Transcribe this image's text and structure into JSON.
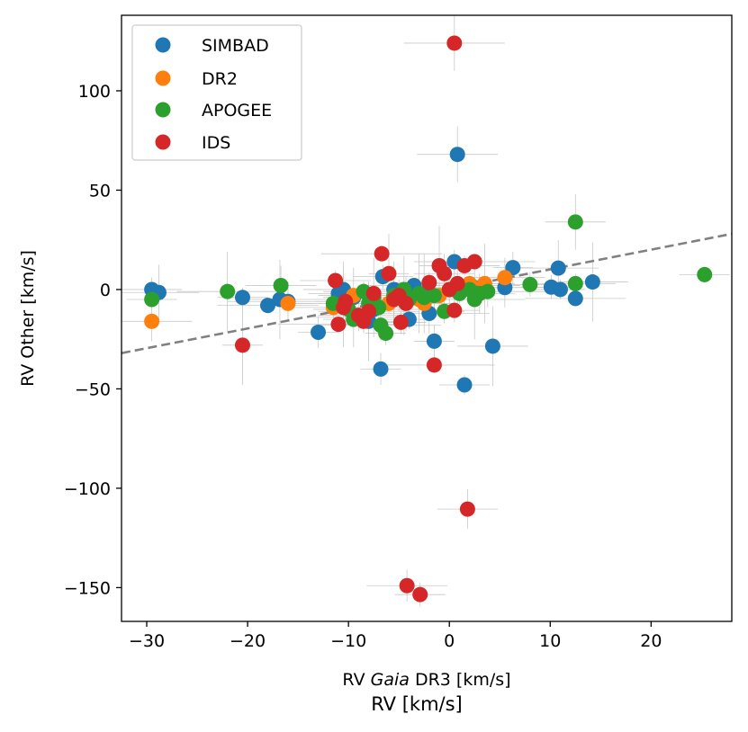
{
  "chart_data": {
    "type": "scatter",
    "title": "",
    "xlabel_parts": [
      "RV ",
      "Gaia",
      " DR3 [km/s]"
    ],
    "ylabel": "RV Other [km/s]",
    "xlim": [
      -32.5,
      28
    ],
    "ylim": [
      -167,
      138
    ],
    "xticks": [
      -30,
      -20,
      -10,
      0,
      10,
      20
    ],
    "xtick_labels": [
      "−30",
      "−20",
      "−10",
      "0",
      "10",
      "20"
    ],
    "yticks": [
      -150,
      -100,
      -50,
      0,
      50,
      100
    ],
    "ytick_labels": [
      "−150",
      "−100",
      "−50",
      "0",
      "50",
      "100"
    ],
    "reference_line": {
      "style": "dashed",
      "color": "#808080",
      "points": [
        [
          -32.5,
          -32
        ],
        [
          28,
          28
        ]
      ]
    },
    "legend_position": "top-left",
    "cut_off_text": "RV [km/s]",
    "series": [
      {
        "name": "SIMBAD",
        "color": "#1f77b4",
        "points": [
          [
            -29.5,
            0
          ],
          [
            -28.8,
            -1.5
          ],
          [
            -20.5,
            -4
          ],
          [
            -18,
            -8
          ],
          [
            -16.8,
            -5
          ],
          [
            -16,
            -6
          ],
          [
            -13,
            -21.5
          ],
          [
            -11,
            -2
          ],
          [
            -10.5,
            0
          ],
          [
            -9.5,
            -4
          ],
          [
            -8.5,
            -14
          ],
          [
            -8,
            -16
          ],
          [
            -7.5,
            -10
          ],
          [
            -6.8,
            -40
          ],
          [
            -6.6,
            6.5
          ],
          [
            -5.5,
            0
          ],
          [
            -4,
            -15
          ],
          [
            -3.5,
            2
          ],
          [
            -2.5,
            -2
          ],
          [
            -2,
            -12
          ],
          [
            -1.5,
            -26
          ],
          [
            0.5,
            14
          ],
          [
            0.8,
            68
          ],
          [
            1.5,
            -48
          ],
          [
            2.5,
            1
          ],
          [
            4.3,
            -28.5
          ],
          [
            5.5,
            1
          ],
          [
            6.3,
            11
          ],
          [
            10.1,
            1.2
          ],
          [
            10.8,
            10.8
          ],
          [
            11,
            0
          ],
          [
            12.5,
            -4.5
          ],
          [
            14.2,
            3.8
          ]
        ]
      },
      {
        "name": "DR2",
        "color": "#ff7f0e",
        "points": [
          [
            -29.5,
            -16
          ],
          [
            -16,
            -7
          ],
          [
            -11.5,
            -9
          ],
          [
            -9.5,
            -3
          ],
          [
            -7.5,
            -5
          ],
          [
            -6,
            -7
          ],
          [
            -4.5,
            -3
          ],
          [
            -3,
            -5
          ],
          [
            -2.5,
            -7
          ],
          [
            -1,
            -3
          ],
          [
            0,
            0
          ],
          [
            1,
            2
          ],
          [
            2,
            3
          ],
          [
            3.5,
            3
          ],
          [
            5.5,
            6
          ]
        ]
      },
      {
        "name": "APOGEE",
        "color": "#2ca02c",
        "points": [
          [
            -29.5,
            -5
          ],
          [
            -22,
            -1
          ],
          [
            -16.7,
            2
          ],
          [
            -11.5,
            -7
          ],
          [
            -10,
            -10
          ],
          [
            -9.5,
            -15
          ],
          [
            -8.5,
            -1
          ],
          [
            -8,
            -7
          ],
          [
            -7.5,
            -4
          ],
          [
            -7,
            -9
          ],
          [
            -6.8,
            -18
          ],
          [
            -6.3,
            -22
          ],
          [
            -5.5,
            -3
          ],
          [
            -4.5,
            0
          ],
          [
            -4,
            -5
          ],
          [
            -3,
            -2
          ],
          [
            -2.5,
            -4
          ],
          [
            -1.5,
            -3
          ],
          [
            -0.5,
            -11
          ],
          [
            0.5,
            0
          ],
          [
            1,
            -2
          ],
          [
            2,
            0
          ],
          [
            2.5,
            -5
          ],
          [
            3,
            -2
          ],
          [
            3.8,
            -1
          ],
          [
            8,
            2.5
          ],
          [
            12.5,
            34
          ],
          [
            12.5,
            3
          ],
          [
            25.3,
            7.5
          ]
        ]
      },
      {
        "name": "IDS",
        "color": "#d62728",
        "points": [
          [
            0.5,
            124
          ],
          [
            -11.3,
            4.5
          ],
          [
            -11,
            -17.5
          ],
          [
            -10.5,
            -9
          ],
          [
            -10.3,
            -6
          ],
          [
            -9,
            -13
          ],
          [
            -8.5,
            -16
          ],
          [
            -8,
            -11
          ],
          [
            -7.5,
            -2
          ],
          [
            -6.7,
            18
          ],
          [
            -6,
            8
          ],
          [
            -5.5,
            -5
          ],
          [
            -5,
            -3
          ],
          [
            -4.8,
            -16.5
          ],
          [
            -4.3,
            -7
          ],
          [
            -2,
            3.5
          ],
          [
            -1.5,
            -38
          ],
          [
            -1,
            12
          ],
          [
            -0.5,
            8
          ],
          [
            0,
            0
          ],
          [
            0.5,
            -10.5
          ],
          [
            0.8,
            3
          ],
          [
            1.5,
            12
          ],
          [
            2.5,
            14
          ],
          [
            -20.5,
            -28
          ],
          [
            1.8,
            -110.5
          ],
          [
            -4.2,
            -149
          ],
          [
            -2.9,
            -153.5
          ]
        ]
      }
    ]
  }
}
